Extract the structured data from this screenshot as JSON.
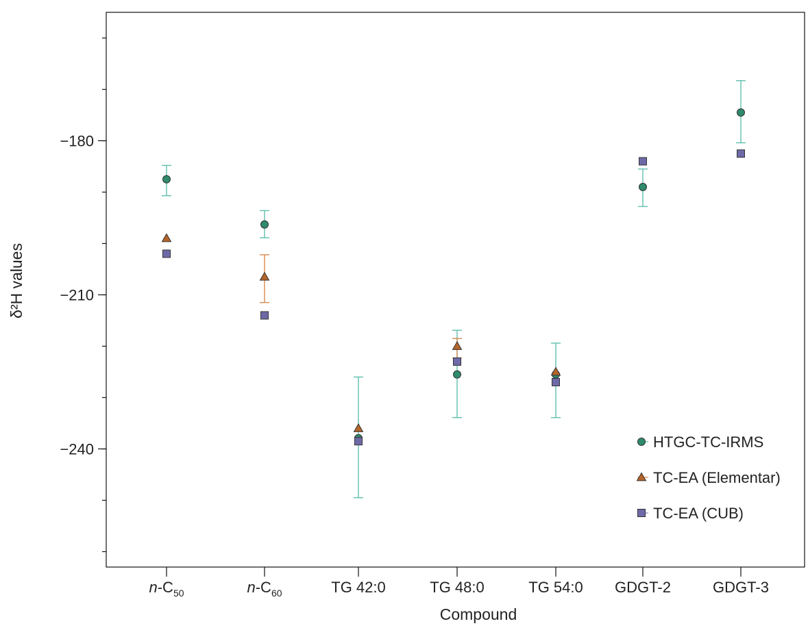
{
  "chart_data": {
    "type": "scatter",
    "title": "",
    "xlabel": "Compound",
    "ylabel": "δ²H values",
    "categories": [
      {
        "label": "n-C50",
        "italic": "n",
        "base": "-C",
        "sub": "50"
      },
      {
        "label": "n-C60",
        "italic": "n",
        "base": "-C",
        "sub": "60"
      },
      {
        "label": "TG 42:0",
        "italic": "",
        "base": "TG 42:0",
        "sub": ""
      },
      {
        "label": "TG 48:0",
        "italic": "",
        "base": "TG 48:0",
        "sub": ""
      },
      {
        "label": "TG 54:0",
        "italic": "",
        "base": "TG 54:0",
        "sub": ""
      },
      {
        "label": "GDGT-2",
        "italic": "",
        "base": "GDGT-2",
        "sub": ""
      },
      {
        "label": "GDGT-3",
        "italic": "",
        "base": "GDGT-3",
        "sub": ""
      }
    ],
    "ylim": [
      -263,
      -155
    ],
    "yticks": [
      -180,
      -210,
      -240
    ],
    "ytick_labels": [
      "−180",
      "−210",
      "−240"
    ],
    "y_minor_step": 10,
    "grid": false,
    "legend_position": "bottom-right",
    "series": [
      {
        "name": "HTGC-TC-IRMS",
        "marker": "circle",
        "color": "#2e8b6b",
        "error_color": "#5fbfae",
        "values": [
          -187.5,
          -196.3,
          -237.9,
          -225.5,
          -225.5,
          -189.0,
          -174.5
        ],
        "errors": [
          [
            -184.8,
            -190.7
          ],
          [
            -193.6,
            -198.9
          ],
          [
            -226.0,
            -249.5
          ],
          [
            -216.9,
            -233.9
          ],
          [
            -219.4,
            -233.9
          ],
          [
            -185.5,
            -192.8
          ],
          [
            -168.3,
            -180.4
          ]
        ]
      },
      {
        "name": "TC-EA (Elementar)",
        "marker": "triangle",
        "color": "#b5652a",
        "error_color": "#d98a4e",
        "values": [
          -199.0,
          -206.5,
          -236.0,
          -220.0,
          -225.0,
          null,
          null
        ],
        "errors": [
          null,
          [
            -202.2,
            -211.5
          ],
          null,
          [
            -218.5,
            -222.3
          ],
          null,
          null,
          null
        ]
      },
      {
        "name": "TC-EA (CUB)",
        "marker": "square",
        "color": "#6e6aa8",
        "error_color": "#8a87c0",
        "values": [
          -202.0,
          -214.0,
          -238.5,
          -223.0,
          -227.0,
          -184.0,
          -182.5
        ],
        "errors": [
          null,
          null,
          null,
          null,
          null,
          null,
          null
        ]
      }
    ]
  }
}
